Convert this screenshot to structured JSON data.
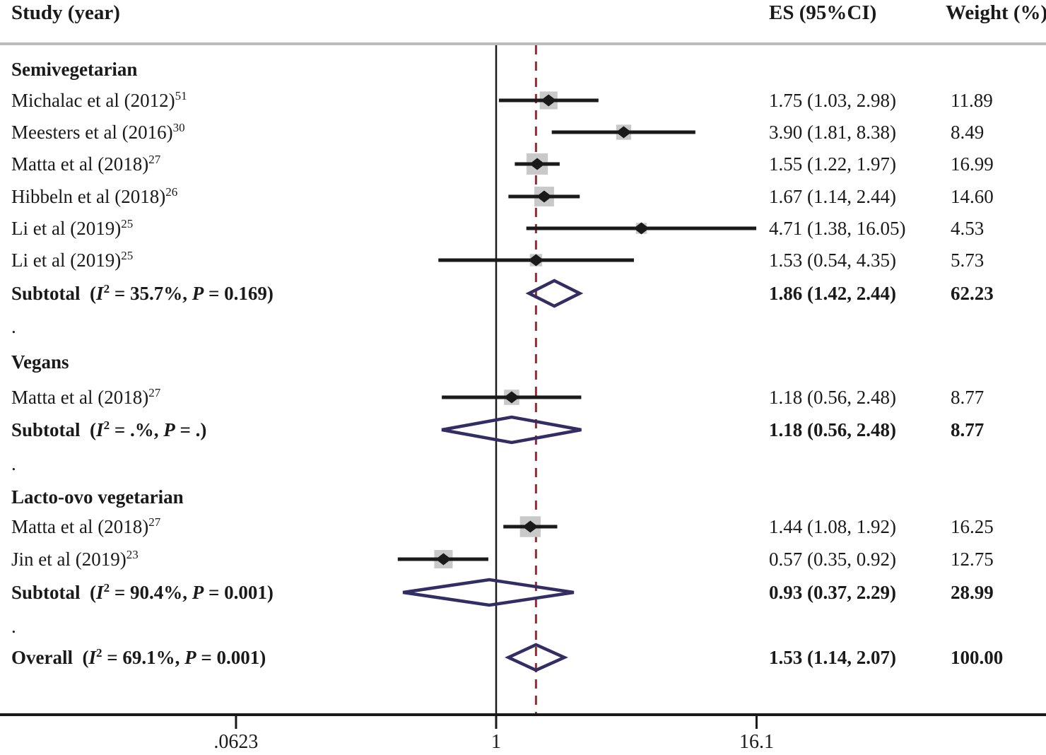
{
  "chart_data": {
    "type": "forest",
    "columns": {
      "study": "Study (year)",
      "es": "ES (95%CI)",
      "weight": "Weight (%)"
    },
    "x_axis": {
      "scale": "log",
      "ticks": [
        {
          "value": 0.0623,
          "label": ".0623"
        },
        {
          "value": 1,
          "label": "1"
        },
        {
          "value": 16.1,
          "label": "16.1"
        }
      ],
      "null_line_value": 1,
      "ref_line_value": 1.53
    },
    "groups": [
      {
        "name": "Semivegetarian",
        "studies": [
          {
            "label": "Michalac et al (2012)",
            "ref": "51",
            "es": 1.75,
            "lo": 1.03,
            "hi": 2.98,
            "es_text": "1.75 (1.03, 2.98)",
            "weight": 11.89,
            "weight_text": "11.89"
          },
          {
            "label": "Meesters et al (2016)",
            "ref": "30",
            "es": 3.9,
            "lo": 1.81,
            "hi": 8.38,
            "es_text": "3.90 (1.81, 8.38)",
            "weight": 8.49,
            "weight_text": "8.49"
          },
          {
            "label": "Matta et al (2018)",
            "ref": "27",
            "es": 1.55,
            "lo": 1.22,
            "hi": 1.97,
            "es_text": "1.55 (1.22, 1.97)",
            "weight": 16.99,
            "weight_text": "16.99"
          },
          {
            "label": "Hibbeln et al (2018)",
            "ref": "26",
            "es": 1.67,
            "lo": 1.14,
            "hi": 2.44,
            "es_text": "1.67 (1.14, 2.44)",
            "weight": 14.6,
            "weight_text": "14.60"
          },
          {
            "label": "Li et al (2019)",
            "ref": "25",
            "es": 4.71,
            "lo": 1.38,
            "hi": 16.05,
            "es_text": "4.71 (1.38, 16.05)",
            "weight": 4.53,
            "weight_text": "4.53"
          },
          {
            "label": "Li et al (2019)",
            "ref": "25",
            "es": 1.53,
            "lo": 0.54,
            "hi": 4.35,
            "es_text": "1.53 (0.54, 4.35)",
            "weight": 5.73,
            "weight_text": "5.73"
          }
        ],
        "subtotal": {
          "label": "Subtotal",
          "i2": "35.7%",
          "p": "0.169",
          "es": 1.86,
          "lo": 1.42,
          "hi": 2.44,
          "es_text": "1.86 (1.42, 2.44)",
          "weight_text": "62.23"
        }
      },
      {
        "name": "Vegans",
        "studies": [
          {
            "label": "Matta et al (2018)",
            "ref": "27",
            "es": 1.18,
            "lo": 0.56,
            "hi": 2.48,
            "es_text": "1.18 (0.56, 2.48)",
            "weight": 8.77,
            "weight_text": "8.77"
          }
        ],
        "subtotal": {
          "label": "Subtotal",
          "i2": ".%",
          "p": ".",
          "es": 1.18,
          "lo": 0.56,
          "hi": 2.48,
          "es_text": "1.18 (0.56, 2.48)",
          "weight_text": "8.77"
        }
      },
      {
        "name": "Lacto-ovo vegetarian",
        "studies": [
          {
            "label": "Matta et al (2018)",
            "ref": "27",
            "es": 1.44,
            "lo": 1.08,
            "hi": 1.92,
            "es_text": "1.44 (1.08, 1.92)",
            "weight": 16.25,
            "weight_text": "16.25"
          },
          {
            "label": "Jin et al (2019)",
            "ref": "23",
            "es": 0.57,
            "lo": 0.35,
            "hi": 0.92,
            "es_text": "0.57 (0.35, 0.92)",
            "weight": 12.75,
            "weight_text": "12.75"
          }
        ],
        "subtotal": {
          "label": "Subtotal",
          "i2": "90.4%",
          "p": "0.001",
          "es": 0.93,
          "lo": 0.37,
          "hi": 2.29,
          "es_text": "0.93 (0.37, 2.29)",
          "weight_text": "28.99"
        }
      }
    ],
    "overall": {
      "label": "Overall",
      "i2": "69.1%",
      "p": "0.001",
      "es": 1.53,
      "lo": 1.14,
      "hi": 2.07,
      "es_text": "1.53 (1.14, 2.07)",
      "weight_text": "100.00"
    },
    "dot_row_text": ".",
    "colors": {
      "text": "#1a1a1a",
      "ci_line": "#1a1a1a",
      "marker": "#1a1a1a",
      "weight_square": "#c9c9c9",
      "summary_diamond": "#322e63",
      "ref_line": "#9b2c35",
      "top_rule": "#bcbcbc",
      "axis": "#1a1a1a"
    }
  }
}
